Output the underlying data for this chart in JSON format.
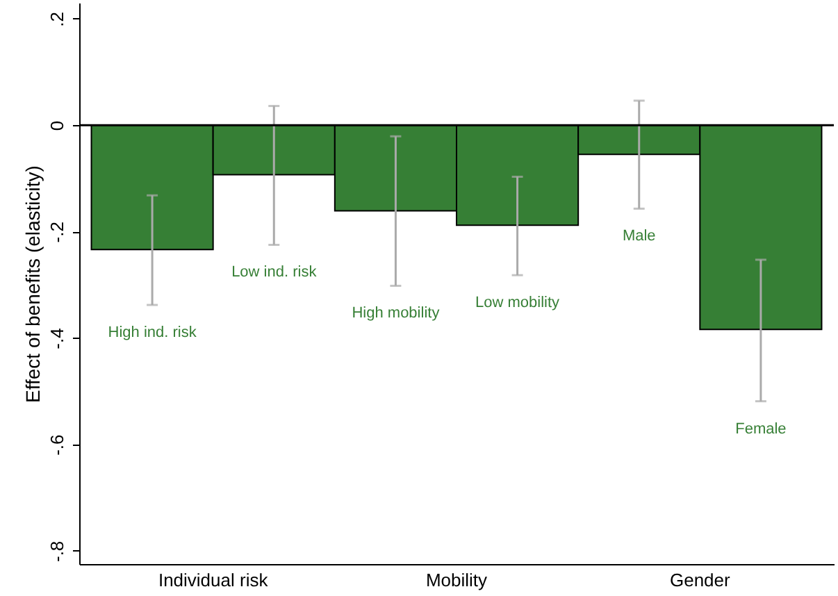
{
  "chart_data": {
    "type": "bar",
    "ylabel": "Effect of benefits (elasticity)",
    "categories": [
      "High ind. risk",
      "Low ind. risk",
      "High mobility",
      "Low mobility",
      "Male",
      "Female"
    ],
    "values": [
      -0.234,
      -0.093,
      -0.161,
      -0.188,
      -0.055,
      -0.384
    ],
    "errors": [
      [
        -0.338,
        -0.132
      ],
      [
        -0.225,
        0.036
      ],
      [
        -0.302,
        -0.021
      ],
      [
        -0.282,
        -0.097
      ],
      [
        -0.157,
        0.046
      ],
      [
        -0.519,
        -0.253
      ]
    ],
    "color": "#367f35",
    "ylim": [
      -0.825,
      0.23
    ],
    "yticks": [
      {
        "value": -0.8,
        "label": "-.8"
      },
      {
        "value": -0.6,
        "label": "-.6"
      },
      {
        "value": -0.4,
        "label": "-.4"
      },
      {
        "value": -0.2,
        "label": "-.2"
      },
      0,
      {
        "value": 0.2,
        "label": ".2"
      }
    ],
    "ref_lines": [
      {
        "axis": "y",
        "value": 0,
        "color": "#000000"
      }
    ],
    "annotations": [
      "Individual risk",
      "Mobility",
      "Gender"
    ],
    "grid": false
  }
}
